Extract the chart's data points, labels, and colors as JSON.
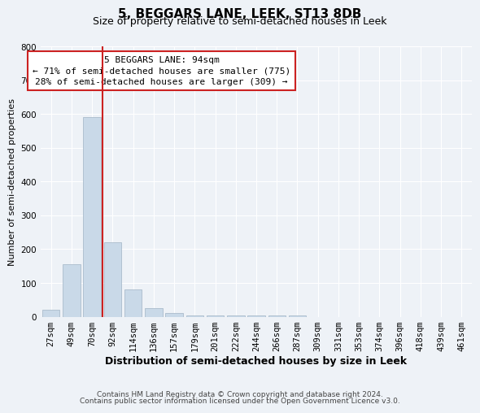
{
  "title": "5, BEGGARS LANE, LEEK, ST13 8DB",
  "subtitle": "Size of property relative to semi-detached houses in Leek",
  "xlabel": "Distribution of semi-detached houses by size in Leek",
  "ylabel": "Number of semi-detached properties",
  "bin_labels": [
    "27sqm",
    "49sqm",
    "70sqm",
    "92sqm",
    "114sqm",
    "136sqm",
    "157sqm",
    "179sqm",
    "201sqm",
    "222sqm",
    "244sqm",
    "266sqm",
    "287sqm",
    "309sqm",
    "331sqm",
    "353sqm",
    "374sqm",
    "396sqm",
    "418sqm",
    "439sqm",
    "461sqm"
  ],
  "bar_values": [
    20,
    155,
    590,
    220,
    80,
    25,
    10,
    5,
    5,
    5,
    5,
    5,
    5,
    0,
    0,
    0,
    0,
    0,
    0,
    0,
    0
  ],
  "bar_color": "#c9d9e8",
  "bar_edgecolor": "#aabccc",
  "property_bin_index": 3,
  "annotation_line1": "5 BEGGARS LANE: 94sqm",
  "annotation_line2": "← 71% of semi-detached houses are smaller (775)",
  "annotation_line3": "28% of semi-detached houses are larger (309) →",
  "annotation_box_color": "#ffffff",
  "annotation_box_edgecolor": "#cc2222",
  "vline_color": "#cc2222",
  "ylim": [
    0,
    800
  ],
  "yticks": [
    0,
    100,
    200,
    300,
    400,
    500,
    600,
    700,
    800
  ],
  "footer_line1": "Contains HM Land Registry data © Crown copyright and database right 2024.",
  "footer_line2": "Contains public sector information licensed under the Open Government Licence v3.0.",
  "bg_color": "#eef2f7",
  "grid_color": "#ffffff",
  "title_fontsize": 11,
  "subtitle_fontsize": 9,
  "xlabel_fontsize": 9,
  "ylabel_fontsize": 8,
  "tick_fontsize": 7.5,
  "annot_fontsize": 8,
  "footer_fontsize": 6.5
}
